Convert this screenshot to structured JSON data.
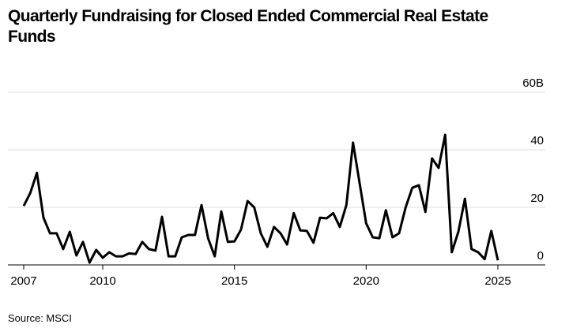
{
  "chart_data": {
    "type": "line",
    "title": "Quarterly Fundraising for Closed Ended Commercial Real Estate Funds",
    "source": "Source: MSCI",
    "x": [
      2007.0,
      2007.25,
      2007.5,
      2007.75,
      2008.0,
      2008.25,
      2008.5,
      2008.75,
      2009.0,
      2009.25,
      2009.5,
      2009.75,
      2010.0,
      2010.25,
      2010.5,
      2010.75,
      2011.0,
      2011.25,
      2011.5,
      2011.75,
      2012.0,
      2012.25,
      2012.5,
      2012.75,
      2013.0,
      2013.25,
      2013.5,
      2013.75,
      2014.0,
      2014.25,
      2014.5,
      2014.75,
      2015.0,
      2015.25,
      2015.5,
      2015.75,
      2016.0,
      2016.25,
      2016.5,
      2016.75,
      2017.0,
      2017.25,
      2017.5,
      2017.75,
      2018.0,
      2018.25,
      2018.5,
      2018.75,
      2019.0,
      2019.25,
      2019.5,
      2019.75,
      2020.0,
      2020.25,
      2020.5,
      2020.75,
      2021.0,
      2021.25,
      2021.5,
      2021.75,
      2022.0,
      2022.25,
      2022.5,
      2022.75,
      2023.0,
      2023.25,
      2023.5,
      2023.75,
      2024.0,
      2024.25,
      2024.5,
      2024.75,
      2025.0
    ],
    "series": [
      {
        "name": "Fundraising",
        "color": "#000000",
        "values": [
          20.5,
          25,
          32,
          16.4,
          11,
          11,
          5.5,
          11.5,
          3.3,
          8,
          0.8,
          5.2,
          2.5,
          4.4,
          3,
          3,
          4,
          3.8,
          8,
          5.5,
          5,
          16.7,
          3,
          3,
          9.6,
          10.4,
          10.4,
          20.8,
          9.3,
          3,
          18.6,
          8,
          8.2,
          12.3,
          22.2,
          20,
          11,
          6.3,
          13.2,
          11,
          7.1,
          18,
          12,
          11.8,
          7.7,
          16.4,
          16.2,
          18,
          13.2,
          20.8,
          42.5,
          28.5,
          14.5,
          9.6,
          9.3,
          19,
          9.6,
          11,
          20,
          26.8,
          27.7,
          18.4,
          37,
          33.7,
          45.2,
          4.4,
          11.5,
          23,
          5.5,
          4.4,
          2,
          11.8,
          1.6
        ]
      }
    ],
    "xlim": [
      2006.4,
      2026.8
    ],
    "xticks": [
      2007,
      2010,
      2015,
      2020,
      2025
    ],
    "ylim": [
      0,
      60
    ],
    "yticks": [
      0,
      20,
      40,
      {
        "value": 60,
        "label": "60B"
      }
    ],
    "grid": true
  }
}
